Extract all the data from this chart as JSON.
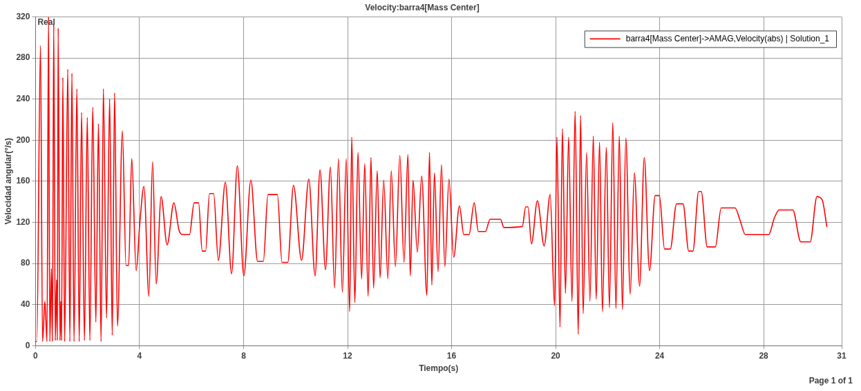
{
  "chart_data": {
    "type": "line",
    "title": "Velocity:barra4[Mass Center]",
    "xlabel": "Tiempo(s)",
    "ylabel": "Velocidad angular(°/s)",
    "annotations": [
      "Real",
      "Page 1 of 1"
    ],
    "series": [
      {
        "name": "barra4[Mass Center]->AMAG,Velocity(abs) | Solution_1",
        "color": "#ff0000",
        "x": [
          0,
          0.05,
          0.19,
          0.27,
          0.36,
          0.44,
          0.5,
          0.55,
          0.61,
          0.65,
          0.7,
          0.76,
          0.81,
          0.84,
          0.87,
          0.94,
          0.97,
          1.0,
          1.05,
          1.12,
          1.24,
          1.32,
          1.4,
          1.48,
          1.59,
          1.68,
          1.77,
          1.88,
          1.99,
          2.09,
          2.2,
          2.32,
          2.42,
          2.52,
          2.61,
          2.73,
          2.85,
          2.95,
          3.04,
          3.15,
          3.34,
          3.48,
          3.58,
          3.7,
          3.87,
          4.01,
          4.17,
          4.36,
          4.5,
          4.64,
          4.83,
          5.06,
          5.32,
          5.52,
          5.65,
          5.92,
          6.1,
          6.27,
          6.41,
          6.54,
          6.69,
          6.85,
          7.03,
          7.3,
          7.54,
          7.76,
          8.01,
          8.28,
          8.54,
          8.76,
          8.94,
          9.3,
          9.48,
          9.7,
          9.92,
          10.23,
          10.51,
          10.75,
          10.94,
          11.15,
          11.34,
          11.5,
          11.65,
          11.8,
          11.95,
          12.08,
          12.16,
          12.28,
          12.4,
          12.54,
          12.66,
          12.79,
          12.9,
          13.0,
          13.14,
          13.25,
          13.39,
          13.55,
          13.68,
          13.84,
          14.01,
          14.17,
          14.32,
          14.41,
          14.52,
          14.68,
          14.85,
          15.05,
          15.15,
          15.24,
          15.34,
          15.48,
          15.61,
          15.74,
          15.9,
          16.08,
          16.3,
          16.47,
          16.67,
          16.87,
          17.03,
          17.3,
          17.48,
          17.88,
          18.01,
          18.72,
          18.85,
          18.94,
          19.07,
          19.3,
          19.56,
          19.79,
          19.96,
          20.05,
          20.17,
          20.26,
          20.38,
          20.5,
          20.63,
          20.75,
          20.87,
          20.96,
          21.06,
          21.19,
          21.32,
          21.45,
          21.56,
          21.69,
          21.8,
          21.95,
          22.07,
          22.2,
          22.32,
          22.45,
          22.57,
          22.7,
          22.87,
          23.03,
          23.23,
          23.41,
          23.61,
          23.83,
          23.99,
          24.19,
          24.41,
          24.65,
          24.9,
          25.12,
          25.28,
          25.5,
          25.6,
          25.83,
          26.14,
          26.37,
          26.9,
          27.08,
          27.3,
          28.19,
          28.41,
          28.59,
          29.12,
          29.43,
          29.79,
          30.05,
          30.25,
          30.43
        ],
        "values": [
          4,
          4,
          292,
          4,
          43,
          4,
          320,
          4,
          75,
          4,
          313,
          5,
          64,
          5,
          309,
          5,
          43,
          5,
          261,
          4,
          269,
          4,
          265,
          4,
          250,
          4,
          227,
          5,
          222,
          5,
          232,
          23,
          216,
          4,
          250,
          27,
          240,
          10,
          246,
          19,
          209,
          78,
          78,
          182,
          73,
          119,
          155,
          48,
          179,
          60,
          145,
          98,
          139,
          112,
          108,
          108,
          139,
          139,
          92,
          92,
          148,
          148,
          83,
          159,
          70,
          175,
          68,
          161,
          82,
          82,
          147,
          147,
          81,
          81,
          156,
          83,
          162,
          68,
          171,
          74,
          174,
          56,
          182,
          52,
          182,
          33,
          203,
          42,
          188,
          65,
          177,
          48,
          183,
          56,
          170,
          66,
          161,
          65,
          170,
          77,
          185,
          81,
          186,
          68,
          161,
          91,
          165,
          49,
          188,
          59,
          168,
          72,
          176,
          77,
          162,
          86,
          136,
          108,
          108,
          139,
          111,
          111,
          123,
          123,
          115,
          116,
          135,
          135,
          99,
          141,
          97,
          147,
          39,
          203,
          18,
          211,
          51,
          203,
          43,
          228,
          11,
          224,
          31,
          188,
          43,
          204,
          45,
          198,
          33,
          193,
          37,
          217,
          36,
          204,
          35,
          202,
          50,
          168,
          58,
          183,
          73,
          146,
          146,
          94,
          94,
          138,
          138,
          92,
          92,
          150,
          150,
          96,
          96,
          134,
          134,
          123,
          108,
          108,
          124,
          132,
          132,
          101,
          101,
          145,
          142,
          116
        ]
      }
    ],
    "xlim": [
      0,
      31
    ],
    "xticks": [
      0,
      4,
      8,
      12,
      16,
      20,
      24,
      28,
      31
    ],
    "ylim": [
      0,
      320
    ],
    "yticks": [
      0,
      40,
      80,
      120,
      160,
      200,
      240,
      280,
      320
    ],
    "grid": true,
    "legend": "top right",
    "marker": "none",
    "line_style": "solid"
  }
}
